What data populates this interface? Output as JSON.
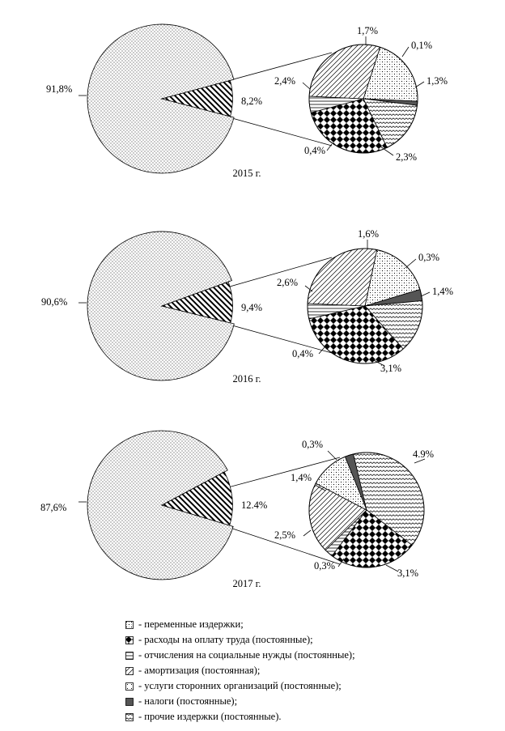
{
  "chart_data": [
    {
      "type": "pie",
      "year_label": "2015 г.",
      "main": {
        "values": [
          91.8,
          8.2
        ],
        "labels": [
          "91,8%",
          "8,2%"
        ]
      },
      "detail": {
        "values": [
          1.7,
          0.1,
          1.3,
          2.3,
          0.4,
          2.4
        ],
        "labels": [
          "1,7%",
          "0,1%",
          "1,3%",
          "2,3%",
          "0,4%",
          "2,4%"
        ],
        "categories": [
          "переменные издержки",
          "налоги (постоянные)",
          "прочие издержки (постоянные)",
          "расходы на оплату труда (постоянные)",
          "отчисления на социальные нужды (постоянные)",
          "амортизация (постоянная)"
        ]
      }
    },
    {
      "type": "pie",
      "year_label": "2016 г.",
      "main": {
        "values": [
          90.6,
          9.4
        ],
        "labels": [
          "90,6%",
          "9,4%"
        ]
      },
      "detail": {
        "values": [
          1.6,
          0.3,
          1.4,
          3.1,
          0.4,
          2.6
        ],
        "labels": [
          "1,6%",
          "0,3%",
          "1,4%",
          "3,1%",
          "0,4%",
          "2,6%"
        ],
        "categories": [
          "переменные издержки",
          "налоги (постоянные)",
          "прочие издержки (постоянные)",
          "расходы на оплату труда (постоянные)",
          "отчисления на социальные нужды (постоянные)",
          "амортизация (постоянная)"
        ]
      }
    },
    {
      "type": "pie",
      "year_label": "2017 г.",
      "main": {
        "values": [
          87.6,
          12.4
        ],
        "labels": [
          "87,6%",
          "12.4%"
        ]
      },
      "detail": {
        "values": [
          0.3,
          4.9,
          3.1,
          0.3,
          2.5,
          1.4
        ],
        "labels": [
          "0,3%",
          "4.9%",
          "3,1%",
          "0,3%",
          "2,5%",
          "1,4%"
        ],
        "categories": [
          "налоги (постоянные)",
          "прочие издержки (постоянные)",
          "расходы на оплату труда (постоянные)",
          "отчисления на социальные нужды (постоянные)",
          "амортизация (постоянная)",
          "переменные издержки"
        ]
      }
    }
  ],
  "legend": [
    {
      "pattern": "variable",
      "text": "- переменные издержки;"
    },
    {
      "pattern": "labor",
      "text": "- расходы на оплату труда (постоянные);"
    },
    {
      "pattern": "social",
      "text": "- отчисления на социальные нужды (постоянные);"
    },
    {
      "pattern": "amort",
      "text": "- амортизация (постоянная);"
    },
    {
      "pattern": "services",
      "text": "- услуги сторонних организаций (постоянные);"
    },
    {
      "pattern": "taxes",
      "text": "- налоги (постоянные);"
    },
    {
      "pattern": "other",
      "text": "- прочие издержки (постоянные)."
    }
  ],
  "patterns": {
    "переменные издержки": "variable",
    "расходы на оплату труда (постоянные)": "labor",
    "отчисления на социальные нужды (постоянные)": "social",
    "амортизация (постоянная)": "amort",
    "налоги (постоянные)": "taxes",
    "прочие издержки (постоянные)": "other"
  },
  "colors": {
    "stroke": "#000000",
    "background": "#ffffff",
    "taxes_fill": "#555555"
  }
}
